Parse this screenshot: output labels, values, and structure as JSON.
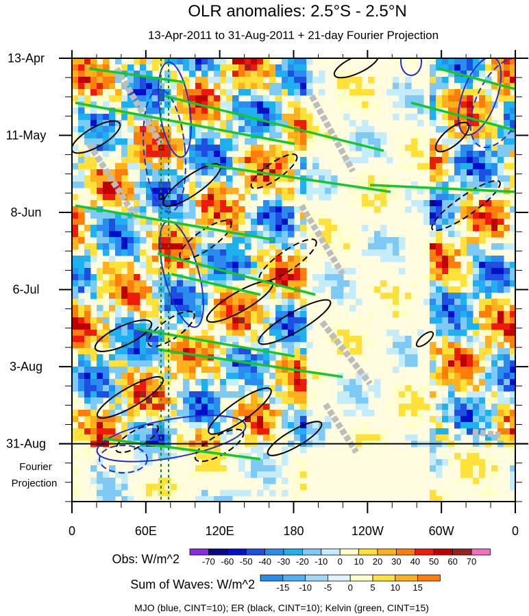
{
  "chart_data": {
    "type": "heatmap",
    "title": "OLR anomalies: 2.5°S - 2.5°N",
    "subtitle": "13-Apr-2011 to 31-Aug-2011 + 21-day Fourier Projection",
    "x_axis": {
      "ticks": [
        {
          "lon": 0,
          "label": "0"
        },
        {
          "lon": 60,
          "label": "60E"
        },
        {
          "lon": 120,
          "label": "120E"
        },
        {
          "lon": 180,
          "label": "180"
        },
        {
          "lon": 240,
          "label": "120W"
        },
        {
          "lon": 300,
          "label": "60W"
        },
        {
          "lon": 360,
          "label": "0"
        }
      ],
      "range": [
        0,
        360
      ]
    },
    "y_axis": {
      "ticks": [
        {
          "day": 0,
          "label": "13-Apr"
        },
        {
          "day": 28,
          "label": "11-May"
        },
        {
          "day": 56,
          "label": "8-Jun"
        },
        {
          "day": 84,
          "label": "6-Jul"
        },
        {
          "day": 112,
          "label": "3-Aug"
        },
        {
          "day": 140,
          "label": "31-Aug"
        }
      ],
      "range_days": [
        0,
        161
      ],
      "projection_label_1": "Fourier",
      "projection_label_2": "Projection",
      "projection_start_day": 140
    },
    "obs_colorbar": {
      "label": "Obs: W/m^2",
      "levels": [
        "-70",
        "-60",
        "-50",
        "-40",
        "-30",
        "-20",
        "-10",
        "0",
        "10",
        "20",
        "30",
        "40",
        "50",
        "60",
        "70"
      ],
      "colors": [
        "#8a2be2",
        "#08088a",
        "#0010c8",
        "#1e4fe0",
        "#2b8cf0",
        "#1fb0f0",
        "#7fc9f5",
        "#c5ecfb",
        "#ffffc8",
        "#ffe13a",
        "#ffb01e",
        "#ff7d0a",
        "#ee1a0a",
        "#c00000",
        "#9a2222",
        "#f070c0"
      ]
    },
    "wave_colorbar": {
      "label": "Sum of Waves: W/m^2",
      "levels": [
        "-15",
        "-10",
        "-5",
        "0",
        "5",
        "10",
        "15"
      ],
      "colors": [
        "#2b8cf0",
        "#4fb0f5",
        "#9fd8f8",
        "#dff3fc",
        "#ffffc8",
        "#ffe13a",
        "#ffb01e",
        "#ff7d0a"
      ]
    },
    "footer": "MJO (blue, CINT=10); ER (black, CINT=10); Kelvin (green, CINT=15)"
  }
}
